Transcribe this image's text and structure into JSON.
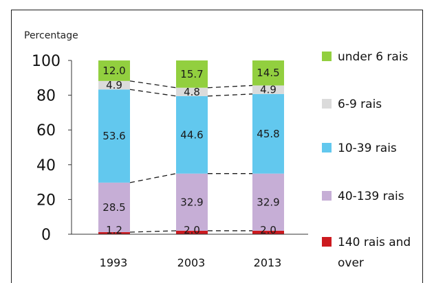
{
  "chart_data": {
    "type": "bar",
    "stacked": true,
    "ylabel": "Percentage",
    "ylim": [
      0,
      100
    ],
    "yticks": [
      0,
      20,
      40,
      60,
      80,
      100
    ],
    "categories": [
      "1993",
      "2003",
      "2013"
    ],
    "series": [
      {
        "name": "140 rais and over",
        "color": "#cc1a1f",
        "values": [
          1.2,
          2.0,
          2.0
        ],
        "labels": [
          "1.2",
          "2.0",
          "2.0"
        ]
      },
      {
        "name": "40-139 rais",
        "color": "#c6aed6",
        "values": [
          28.5,
          32.9,
          32.9
        ],
        "labels": [
          "28.5",
          "32.9",
          "32.9"
        ]
      },
      {
        "name": "10-39 rais",
        "color": "#62c8ee",
        "values": [
          53.6,
          44.6,
          45.8
        ],
        "labels": [
          "53.6",
          "44.6",
          "45.8"
        ]
      },
      {
        "name": "6-9 rais",
        "color": "#dbdbdb",
        "values": [
          4.9,
          4.8,
          4.9
        ],
        "labels": [
          "4.9",
          "4.8",
          "4.9"
        ]
      },
      {
        "name": "under 6 rais",
        "color": "#92cf3f",
        "values": [
          12.0,
          15.7,
          14.5
        ],
        "labels": [
          "12.0",
          "15.7",
          "14.5"
        ]
      }
    ],
    "legend_order": [
      "under 6 rais",
      "6-9 rais",
      "10-39 rais",
      "40-139 rais",
      "140 rais and over"
    ],
    "legend_position": "right",
    "grid": false,
    "connector_lines": "dashed"
  }
}
